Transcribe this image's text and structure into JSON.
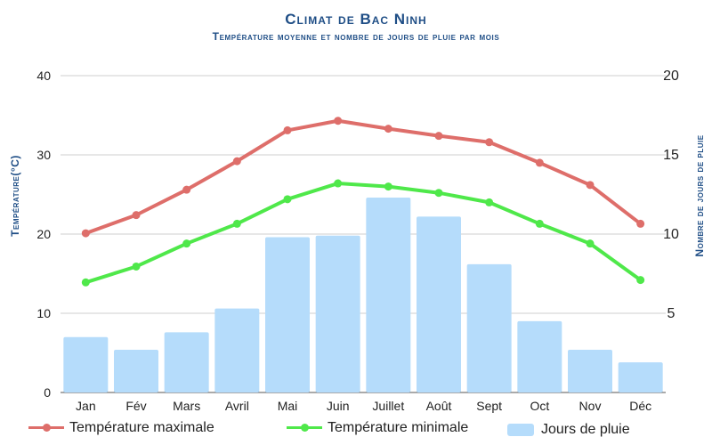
{
  "title": "Climat de Bac Ninh",
  "subtitle": "Température moyenne et nombre de jours de pluie par mois",
  "colors": {
    "max_temp": "#de6e6a",
    "min_temp": "#4fe84a",
    "rain": "#b5dcfb",
    "title": "#1f4e86"
  },
  "chart_data": {
    "type": "bar",
    "categories": [
      "Jan",
      "Fév",
      "Mars",
      "Avril",
      "Mai",
      "Juin",
      "Juillet",
      "Août",
      "Sept",
      "Oct",
      "Nov",
      "Déc"
    ],
    "series": [
      {
        "name": "Température maximale",
        "type": "line",
        "axis": "left",
        "values": [
          20.1,
          22.4,
          25.6,
          29.2,
          33.1,
          34.3,
          33.3,
          32.4,
          31.6,
          29.0,
          26.2,
          21.3
        ]
      },
      {
        "name": "Température minimale",
        "type": "line",
        "axis": "left",
        "values": [
          13.9,
          15.9,
          18.8,
          21.3,
          24.4,
          26.4,
          26.0,
          25.2,
          24.0,
          21.3,
          18.8,
          14.2
        ]
      },
      {
        "name": "Jours de pluie",
        "type": "bar",
        "axis": "right",
        "values": [
          3.5,
          2.7,
          3.8,
          5.3,
          9.8,
          9.9,
          12.3,
          11.1,
          8.1,
          4.5,
          2.7,
          1.9
        ]
      }
    ],
    "ylabel_left": "Température(°C)",
    "ylabel_right": "Nombre de jours de pluie",
    "ylim_left": [
      0,
      40
    ],
    "ylim_right": [
      0,
      20
    ],
    "yticks_left": [
      "0",
      "10",
      "20",
      "30",
      "40"
    ],
    "yticks_right": [
      "5",
      "10",
      "15",
      "20"
    ],
    "grid": true,
    "legend_position": "bottom"
  }
}
